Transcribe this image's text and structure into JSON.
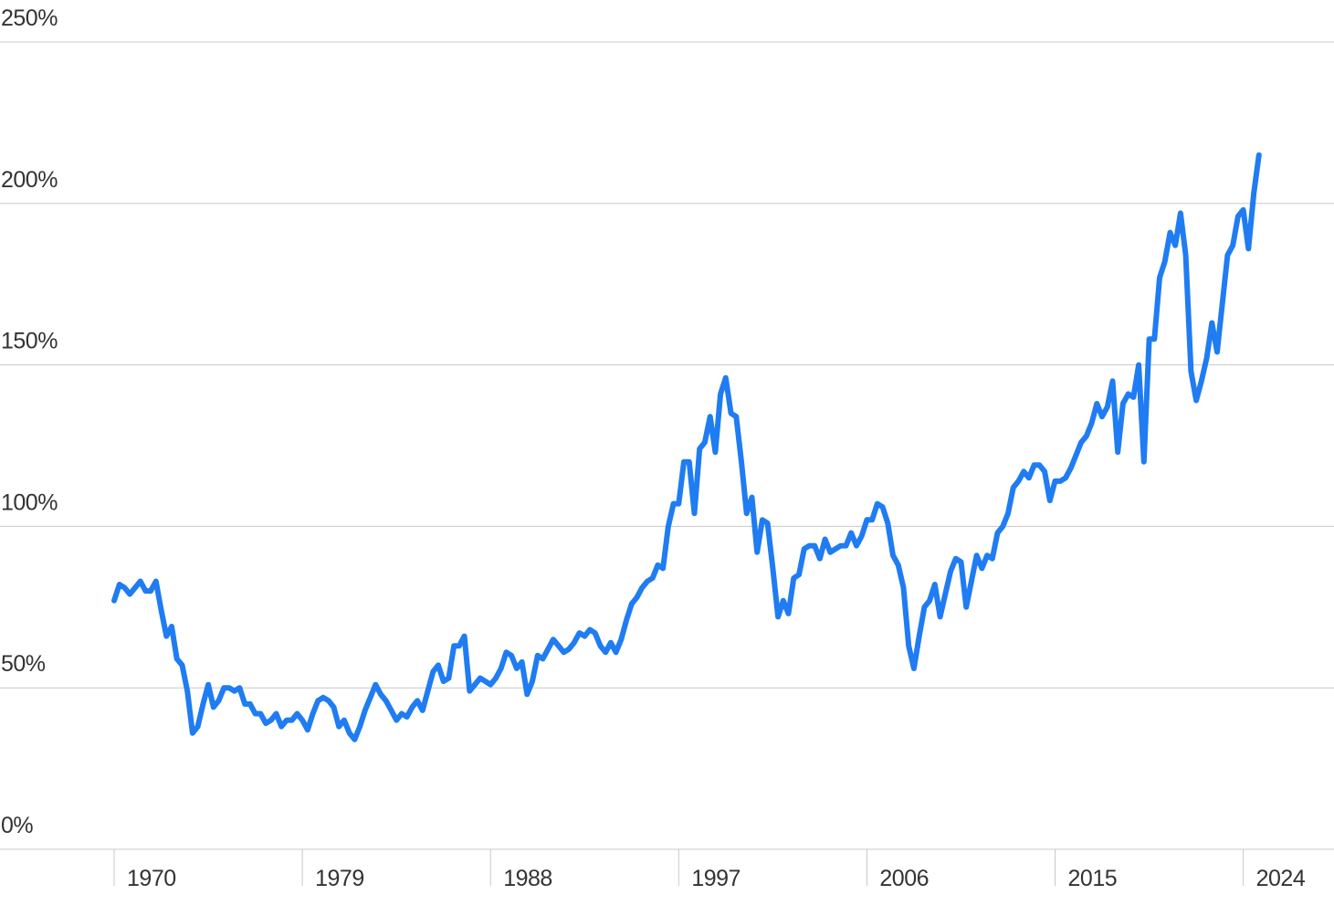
{
  "chart_data": {
    "type": "line",
    "x": [
      1970,
      1970.25,
      1970.5,
      1970.75,
      1971,
      1971.25,
      1971.5,
      1971.75,
      1972,
      1972.25,
      1972.5,
      1972.75,
      1973,
      1973.25,
      1973.5,
      1973.75,
      1974,
      1974.25,
      1974.5,
      1974.75,
      1975,
      1975.25,
      1975.5,
      1975.75,
      1976,
      1976.25,
      1976.5,
      1976.75,
      1977,
      1977.25,
      1977.5,
      1977.75,
      1978,
      1978.25,
      1978.5,
      1978.75,
      1979,
      1979.25,
      1979.5,
      1979.75,
      1980,
      1980.25,
      1980.5,
      1980.75,
      1981,
      1981.25,
      1981.5,
      1981.75,
      1982,
      1982.25,
      1982.5,
      1982.75,
      1983,
      1983.25,
      1983.5,
      1983.75,
      1984,
      1984.25,
      1984.5,
      1984.75,
      1985,
      1985.25,
      1985.5,
      1985.75,
      1986,
      1986.25,
      1986.5,
      1986.75,
      1987,
      1987.25,
      1987.5,
      1987.75,
      1988,
      1988.25,
      1988.5,
      1988.75,
      1989,
      1989.25,
      1989.5,
      1989.75,
      1990,
      1990.25,
      1990.5,
      1990.75,
      1991,
      1991.25,
      1991.5,
      1991.75,
      1992,
      1992.25,
      1992.5,
      1992.75,
      1993,
      1993.25,
      1993.5,
      1993.75,
      1994,
      1994.25,
      1994.5,
      1994.75,
      1995,
      1995.25,
      1995.5,
      1995.75,
      1996,
      1996.25,
      1996.5,
      1996.75,
      1997,
      1997.25,
      1997.5,
      1997.75,
      1998,
      1998.25,
      1998.5,
      1998.75,
      1999,
      1999.25,
      1999.5,
      1999.75,
      2000,
      2000.25,
      2000.5,
      2000.75,
      2001,
      2001.25,
      2001.5,
      2001.75,
      2002,
      2002.25,
      2002.5,
      2002.75,
      2003,
      2003.25,
      2003.5,
      2003.75,
      2004,
      2004.25,
      2004.5,
      2004.75,
      2005,
      2005.25,
      2005.5,
      2005.75,
      2006,
      2006.25,
      2006.5,
      2006.75,
      2007,
      2007.25,
      2007.5,
      2007.75,
      2008,
      2008.25,
      2008.5,
      2008.75,
      2009,
      2009.25,
      2009.5,
      2009.75,
      2010,
      2010.25,
      2010.5,
      2010.75,
      2011,
      2011.25,
      2011.5,
      2011.75,
      2012,
      2012.25,
      2012.5,
      2012.75,
      2013,
      2013.25,
      2013.5,
      2013.75,
      2014,
      2014.25,
      2014.5,
      2014.75,
      2015,
      2015.25,
      2015.5,
      2015.75,
      2016,
      2016.25,
      2016.5,
      2016.75,
      2017,
      2017.25,
      2017.5,
      2017.75,
      2018,
      2018.25,
      2018.5,
      2018.75,
      2019,
      2019.25,
      2019.5,
      2019.75,
      2020,
      2020.25,
      2020.5,
      2020.75,
      2021,
      2021.25,
      2021.5,
      2021.75,
      2022,
      2022.25,
      2022.5,
      2022.75,
      2023,
      2023.25,
      2023.5,
      2023.75,
      2024,
      2024.25,
      2024.5,
      2024.75
    ],
    "series": [
      {
        "color": "#1f7cf2",
        "values": [
          77,
          82,
          81,
          79,
          81,
          83,
          80,
          80,
          83,
          74,
          66,
          69,
          59,
          57,
          49,
          36,
          38,
          45,
          51,
          44,
          46,
          50,
          50,
          49,
          50,
          45,
          45,
          42,
          42,
          39,
          40,
          42,
          38,
          40,
          40,
          42,
          40,
          37,
          42,
          46,
          47,
          46,
          44,
          38,
          40,
          36,
          34,
          38,
          43,
          47,
          51,
          48,
          46,
          43,
          40,
          42,
          41,
          44,
          46,
          43,
          49,
          55,
          57,
          52,
          53,
          63,
          63,
          66,
          49,
          51,
          53,
          52,
          51,
          53,
          56,
          61,
          60,
          56,
          58,
          48,
          52,
          60,
          59,
          62,
          65,
          63,
          61,
          62,
          64,
          67,
          66,
          68,
          67,
          63,
          61,
          64,
          61,
          65,
          71,
          76,
          78,
          81,
          83,
          84,
          88,
          87,
          100,
          107,
          107,
          120,
          120,
          104,
          124,
          126,
          134,
          123,
          141,
          146,
          135,
          134,
          120,
          104,
          109,
          92,
          102,
          101,
          87,
          72,
          77,
          73,
          84,
          85,
          93,
          94,
          94,
          90,
          96,
          92,
          93,
          94,
          94,
          98,
          94,
          97,
          102,
          102,
          107,
          106,
          101,
          91,
          88,
          81,
          63,
          56,
          66,
          75,
          77,
          82,
          72,
          79,
          86,
          90,
          89,
          75,
          83,
          91,
          87,
          91,
          90,
          98,
          100,
          104,
          112,
          114,
          117,
          115,
          119,
          119,
          117,
          108,
          114,
          114,
          115,
          118,
          122,
          126,
          128,
          132,
          138,
          134,
          137,
          145,
          123,
          138,
          141,
          140,
          150,
          120,
          158,
          158,
          177,
          182,
          191,
          187,
          197,
          184,
          148,
          139,
          145,
          152,
          163,
          154,
          169,
          184,
          187,
          196,
          198,
          186,
          203,
          215
        ]
      }
    ],
    "xlim": [
      1964.54,
      2028.34
    ],
    "xticks": [
      1970,
      1979,
      1988,
      1997,
      2006,
      2015,
      2024
    ],
    "ylim": [
      0,
      263
    ],
    "yticks": [
      {
        "value": 0,
        "label": "0%"
      },
      {
        "value": 50,
        "label": "50%"
      },
      {
        "value": 100,
        "label": "100%"
      },
      {
        "value": 150,
        "label": "150%"
      },
      {
        "value": 200,
        "label": "200%"
      },
      {
        "value": 250,
        "label": "250%"
      }
    ],
    "grid": true
  }
}
